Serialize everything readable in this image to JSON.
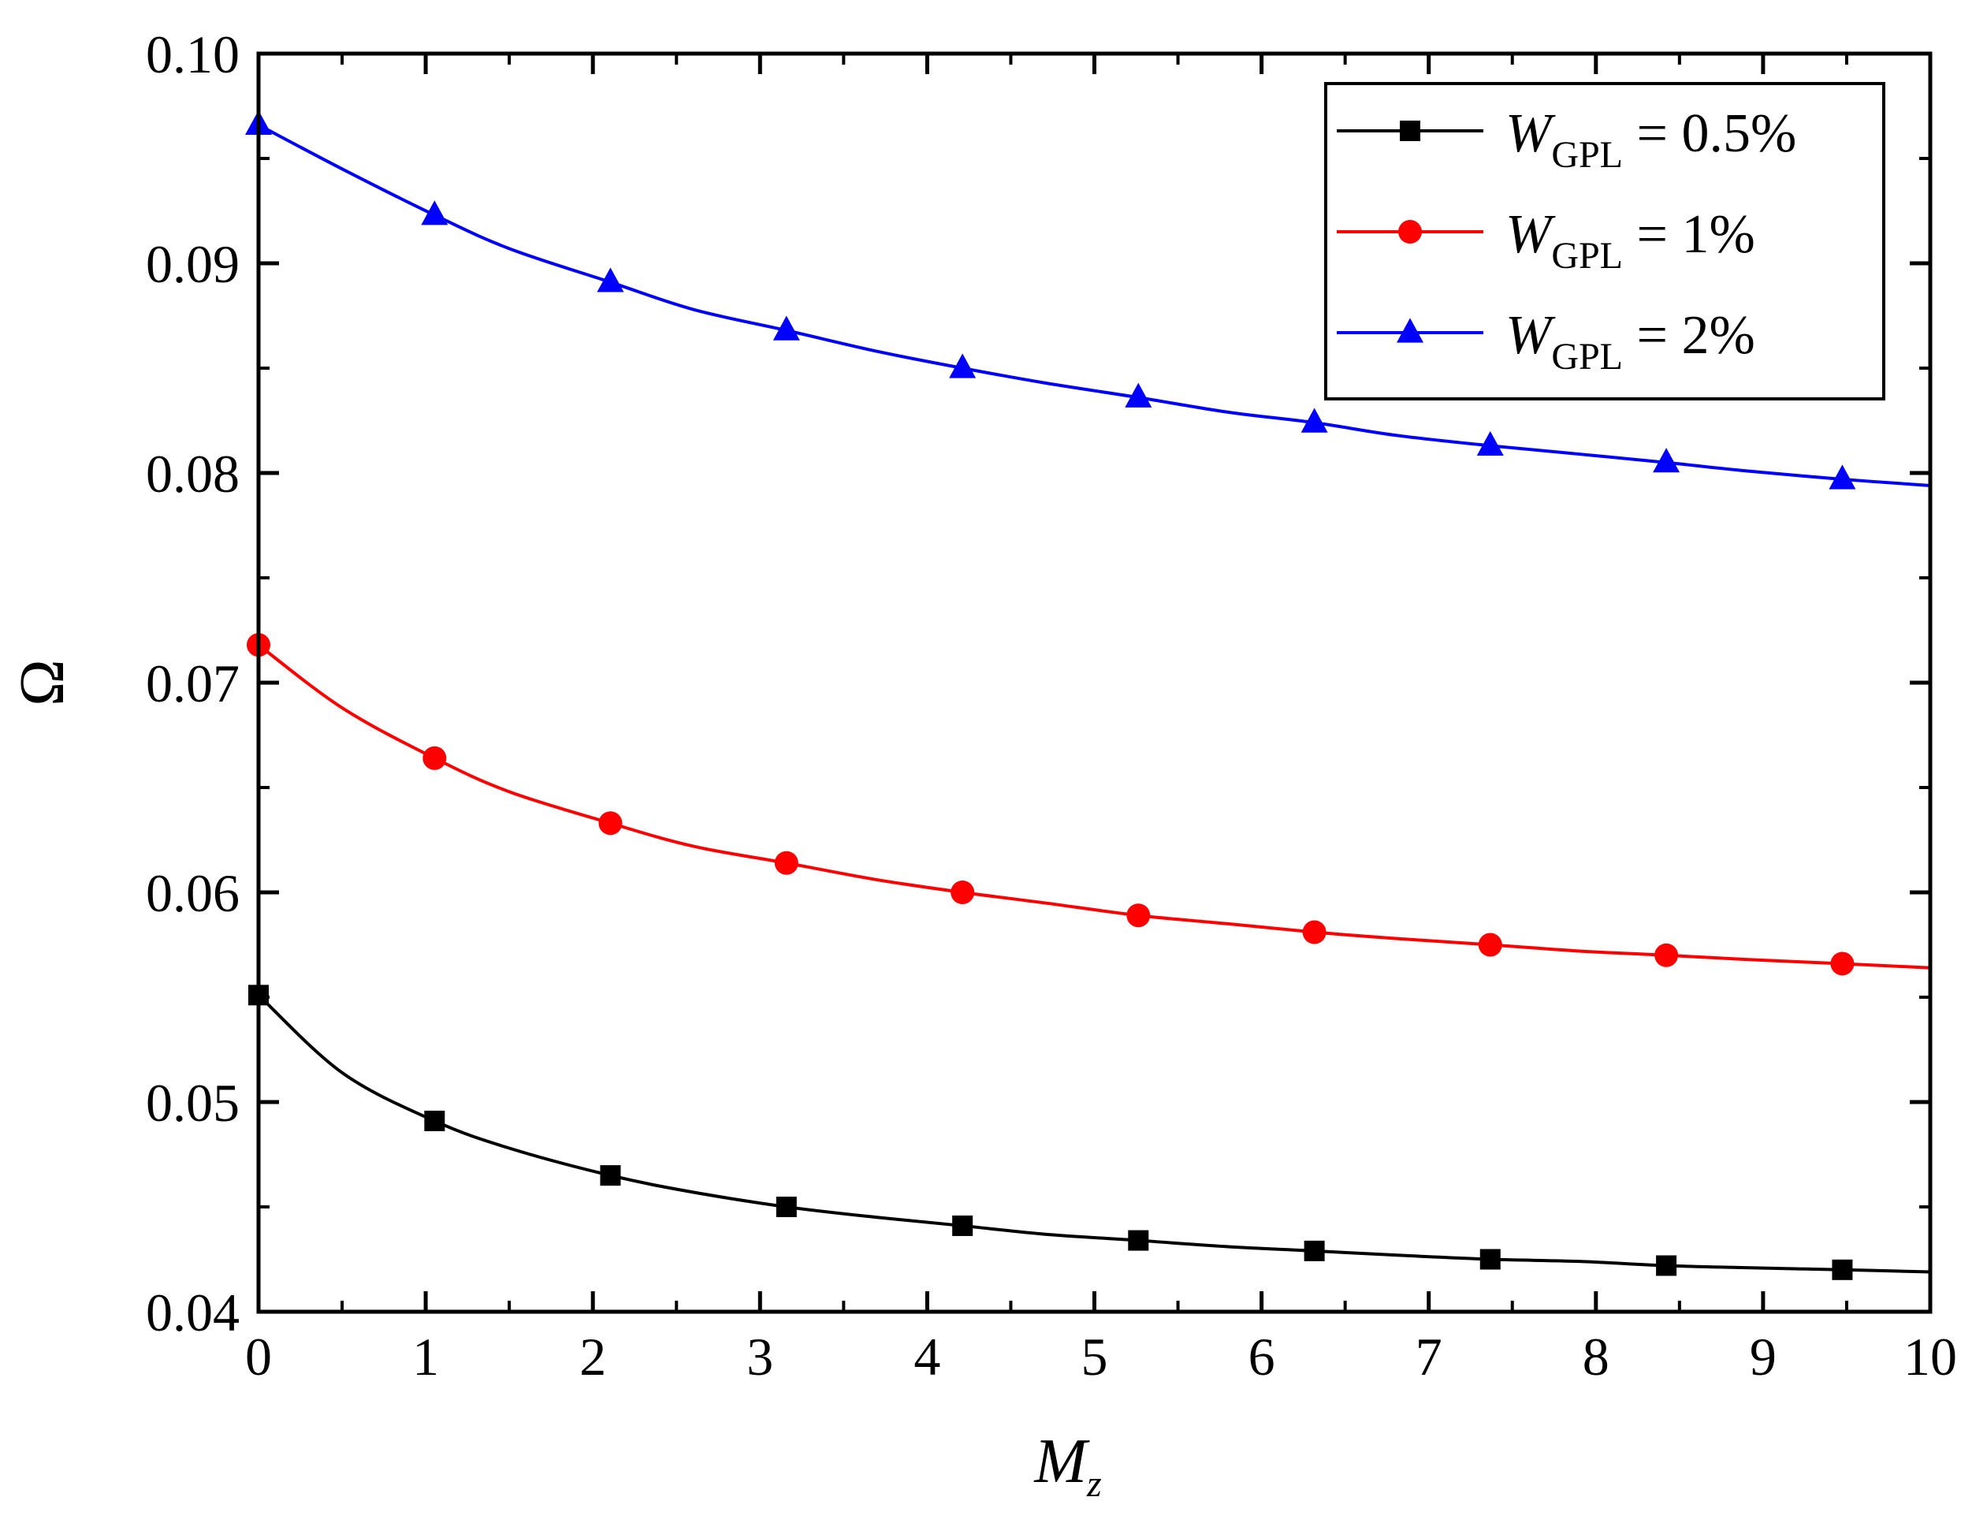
{
  "chart_data": {
    "type": "line",
    "title": "",
    "xlabel": "M",
    "xlabel_sub": "z",
    "ylabel": "Ω",
    "xlim": [
      0,
      10
    ],
    "ylim": [
      0.04,
      0.1
    ],
    "xticks": [
      "0",
      "1",
      "2",
      "3",
      "4",
      "5",
      "6",
      "7",
      "8",
      "9",
      "10"
    ],
    "yticks": [
      "0.04",
      "0.05",
      "0.06",
      "0.07",
      "0.08",
      "0.09",
      "0.10"
    ],
    "grid": false,
    "legend_position": "top-right",
    "marker_x": [
      0,
      1.053,
      2.105,
      3.158,
      4.211,
      5.263,
      6.316,
      7.368,
      8.421,
      9.474
    ],
    "series": [
      {
        "name": "W_GPL = 0.5%",
        "legend_main": "W",
        "legend_sub": "GPL",
        "legend_value": " = 0.5%",
        "color": "#000000",
        "marker": "square",
        "x": [
          0,
          0.5,
          1.053,
          1.5,
          2.105,
          2.6,
          3.158,
          3.7,
          4.211,
          4.7,
          5.263,
          5.8,
          6.316,
          6.8,
          7.368,
          7.9,
          8.421,
          8.9,
          9.474,
          10
        ],
        "values": [
          0.0551,
          0.0514,
          0.0491,
          0.0478,
          0.0465,
          0.0457,
          0.045,
          0.0445,
          0.0441,
          0.0437,
          0.0434,
          0.0431,
          0.0429,
          0.0427,
          0.0425,
          0.0424,
          0.0422,
          0.0421,
          0.042,
          0.0419
        ],
        "marker_values": [
          0.0551,
          0.0491,
          0.0465,
          0.045,
          0.0441,
          0.0434,
          0.0429,
          0.0425,
          0.0422,
          0.042
        ]
      },
      {
        "name": "W_GPL = 1%",
        "legend_main": "W",
        "legend_sub": "GPL",
        "legend_value": " = 1%",
        "color": "#ff0000",
        "marker": "circle",
        "x": [
          0,
          0.5,
          1.053,
          1.5,
          2.105,
          2.6,
          3.158,
          3.7,
          4.211,
          4.7,
          5.263,
          5.8,
          6.316,
          6.8,
          7.368,
          7.9,
          8.421,
          8.9,
          9.474,
          10
        ],
        "values": [
          0.0718,
          0.0688,
          0.0664,
          0.0648,
          0.0633,
          0.0622,
          0.0614,
          0.0606,
          0.06,
          0.0595,
          0.0589,
          0.0585,
          0.0581,
          0.0578,
          0.0575,
          0.0572,
          0.057,
          0.0568,
          0.0566,
          0.0564
        ],
        "marker_values": [
          0.0718,
          0.0664,
          0.0633,
          0.0614,
          0.06,
          0.0589,
          0.0581,
          0.0575,
          0.057,
          0.0566
        ]
      },
      {
        "name": "W_GPL = 2%",
        "legend_main": "W",
        "legend_sub": "GPL",
        "legend_value": " = 2%",
        "color": "#0000ff",
        "marker": "triangle",
        "x": [
          0,
          0.5,
          1.053,
          1.5,
          2.105,
          2.6,
          3.158,
          3.7,
          4.211,
          4.7,
          5.263,
          5.8,
          6.316,
          6.8,
          7.368,
          7.9,
          8.421,
          8.9,
          9.474,
          10
        ],
        "values": [
          0.0966,
          0.0945,
          0.0923,
          0.0907,
          0.0891,
          0.0878,
          0.0868,
          0.0858,
          0.085,
          0.0843,
          0.0836,
          0.0829,
          0.0824,
          0.0818,
          0.0813,
          0.0809,
          0.0805,
          0.0801,
          0.0797,
          0.0794
        ],
        "marker_values": [
          0.0966,
          0.0923,
          0.0891,
          0.0868,
          0.085,
          0.0836,
          0.0824,
          0.0813,
          0.0805,
          0.0797
        ]
      }
    ]
  }
}
